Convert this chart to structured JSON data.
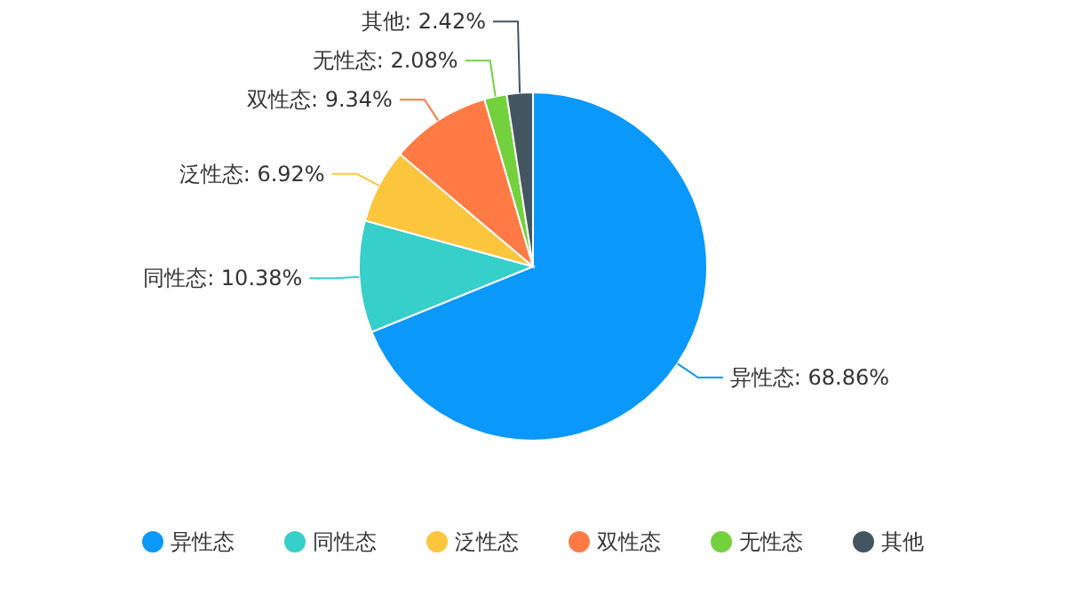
{
  "chart_data": {
    "type": "pie",
    "categories": [
      "异性态",
      "同性态",
      "泛性态",
      "双性态",
      "无性态",
      "其他"
    ],
    "values": [
      68.86,
      10.38,
      6.92,
      9.34,
      2.08,
      2.42
    ],
    "colors": [
      "#0a98fa",
      "#36cfc9",
      "#fcc53e",
      "#ff7a45",
      "#73d13d",
      "#435560"
    ],
    "value_labels": [
      "异性态: 68.86%",
      "同性态: 10.38%",
      "泛性态: 6.92%",
      "双性态: 9.34%",
      "无性态: 2.08%",
      "其他: 2.42%"
    ],
    "legend": "bottom"
  }
}
